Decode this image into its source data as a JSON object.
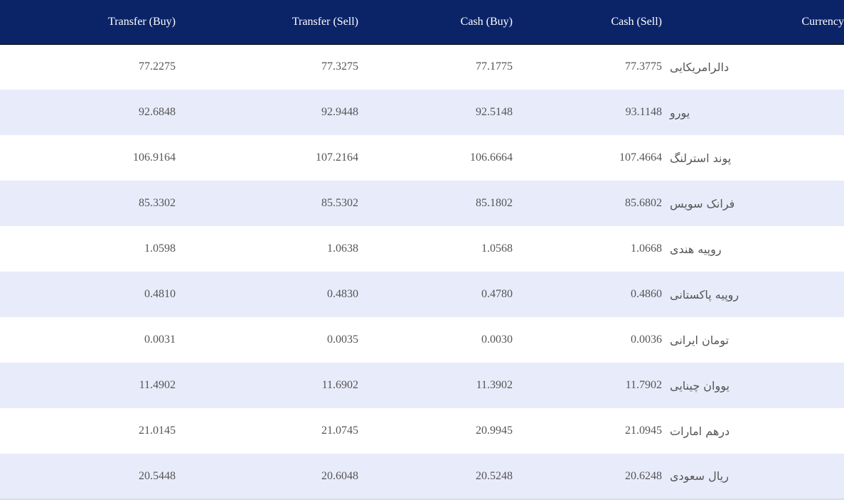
{
  "table": {
    "headers": {
      "transfer_buy": "Transfer (Buy)",
      "transfer_sell": "Transfer (Sell)",
      "cash_buy": "Cash (Buy)",
      "cash_sell": "Cash (Sell)",
      "currency": "Currency"
    },
    "rows": [
      {
        "transfer_buy": "77.2275",
        "transfer_sell": "77.3275",
        "cash_buy": "77.1775",
        "cash_sell": "77.3775",
        "currency": "دالرامریکایی"
      },
      {
        "transfer_buy": "92.6848",
        "transfer_sell": "92.9448",
        "cash_buy": "92.5148",
        "cash_sell": "93.1148",
        "currency": "یورو"
      },
      {
        "transfer_buy": "106.9164",
        "transfer_sell": "107.2164",
        "cash_buy": "106.6664",
        "cash_sell": "107.4664",
        "currency": "پوند استرلنگ"
      },
      {
        "transfer_buy": "85.3302",
        "transfer_sell": "85.5302",
        "cash_buy": "85.1802",
        "cash_sell": "85.6802",
        "currency": "فرانک سویس"
      },
      {
        "transfer_buy": "1.0598",
        "transfer_sell": "1.0638",
        "cash_buy": "1.0568",
        "cash_sell": "1.0668",
        "currency": "روپیه هندی"
      },
      {
        "transfer_buy": "0.4810",
        "transfer_sell": "0.4830",
        "cash_buy": "0.4780",
        "cash_sell": "0.4860",
        "currency": "روپیه پاکستانی"
      },
      {
        "transfer_buy": "0.0031",
        "transfer_sell": "0.0035",
        "cash_buy": "0.0030",
        "cash_sell": "0.0036",
        "currency": "تومان ایرانی"
      },
      {
        "transfer_buy": "11.4902",
        "transfer_sell": "11.6902",
        "cash_buy": "11.3902",
        "cash_sell": "11.7902",
        "currency": "یووان چینایی"
      },
      {
        "transfer_buy": "21.0145",
        "transfer_sell": "21.0745",
        "cash_buy": "20.9945",
        "cash_sell": "21.0945",
        "currency": "درهم امارات"
      },
      {
        "transfer_buy": "20.5448",
        "transfer_sell": "20.6048",
        "cash_buy": "20.5248",
        "cash_sell": "20.6248",
        "currency": "ریال سعودی"
      }
    ]
  },
  "colors": {
    "header_bg": "#0b2468",
    "header_text": "#ffffff",
    "stripe_bg": "#e8ebfa",
    "row_text": "#555555"
  }
}
